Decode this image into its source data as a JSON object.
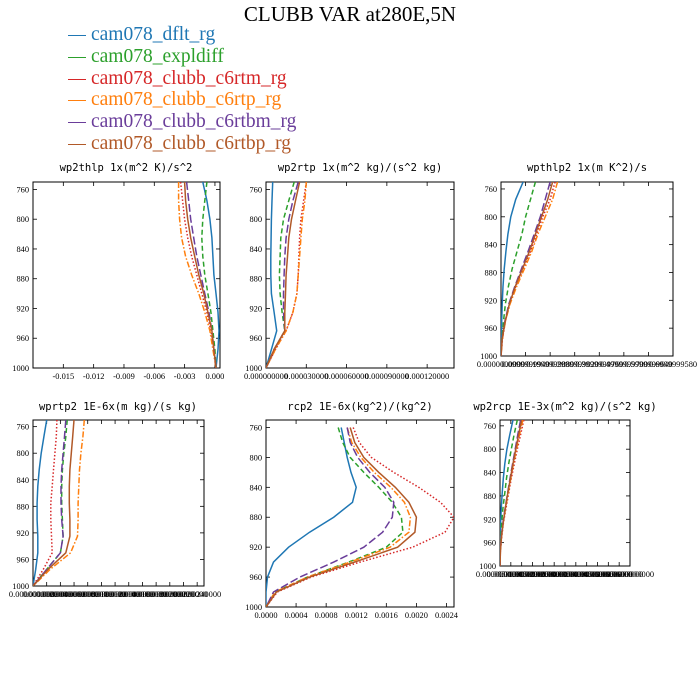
{
  "title": "CLUBB VAR at280E,5N",
  "legend": [
    {
      "label": "cam078_dflt_rg",
      "color": "#1f77b4",
      "dash": "solid"
    },
    {
      "label": "cam078_expldiff",
      "color": "#2ca02c",
      "dash": "dashed"
    },
    {
      "label": "cam078_clubb_c6rtm_rg",
      "color": "#d62728",
      "dash": "dotted"
    },
    {
      "label": "cam078_clubb_c6rtp_rg",
      "color": "#ff7f0e",
      "dash": "dashdot"
    },
    {
      "label": "cam078_clubb_c6rtbm_rg",
      "color": "#6a3d9a",
      "dash": "longdash"
    },
    {
      "label": "cam078_clubb_c6rtbp_rg",
      "color": "#b15928",
      "dash": "solid"
    }
  ],
  "chart_data": [
    {
      "type": "line",
      "title": "wp2thlp  1x(m^2 K)/s^2",
      "xlim": [
        -0.018,
        0.0005
      ],
      "ylim": [
        1000,
        750
      ],
      "xticks": [
        "-0.015",
        "-0.012",
        "-0.009",
        "-0.006",
        "-0.003",
        "0.000"
      ],
      "xtick_values": [
        -0.015,
        -0.012,
        -0.009,
        -0.006,
        -0.003,
        0.0
      ],
      "yticks": [
        760,
        800,
        840,
        880,
        920,
        960,
        1000
      ],
      "levels": [
        750,
        775,
        800,
        825,
        850,
        875,
        900,
        925,
        950,
        975,
        1000
      ],
      "series": [
        {
          "name": "cam078_dflt_rg",
          "values": [
            -0.0012,
            -0.0008,
            -0.0005,
            -0.0003,
            -0.0002,
            -0.0001,
            0.0001,
            0.0003,
            0.0004,
            0.0003,
            0.0001
          ]
        },
        {
          "name": "cam078_expldiff",
          "values": [
            -0.0008,
            -0.001,
            -0.0012,
            -0.0013,
            -0.0012,
            -0.001,
            -0.0007,
            -0.0004,
            -0.0002,
            0.0,
            0.0001
          ]
        },
        {
          "name": "cam078_clubb_c6rtm_rg",
          "values": [
            -0.0034,
            -0.0032,
            -0.003,
            -0.0027,
            -0.0023,
            -0.0018,
            -0.0013,
            -0.0008,
            -0.0004,
            -0.0001,
            0.0001
          ]
        },
        {
          "name": "cam078_clubb_c6rtp_rg",
          "values": [
            -0.0036,
            -0.0036,
            -0.0035,
            -0.0033,
            -0.0029,
            -0.0023,
            -0.0016,
            -0.001,
            -0.0005,
            -0.0002,
            0.0001
          ]
        },
        {
          "name": "cam078_clubb_c6rtbm_rg",
          "values": [
            -0.0028,
            -0.0026,
            -0.0024,
            -0.0021,
            -0.0018,
            -0.0014,
            -0.001,
            -0.0006,
            -0.0003,
            -0.0001,
            0.0001
          ]
        },
        {
          "name": "cam078_clubb_c6rtbp_rg",
          "values": [
            -0.003,
            -0.0029,
            -0.0027,
            -0.0024,
            -0.002,
            -0.0016,
            -0.0011,
            -0.0007,
            -0.0003,
            -0.0001,
            0.0001
          ]
        }
      ]
    },
    {
      "type": "line",
      "title": "wp2rtp  1x(m^2 kg)/(s^2 kg)",
      "xlim": [
        0,
        0.00014
      ],
      "ylim": [
        1000,
        750
      ],
      "xticks": [
        "0.000000000",
        "0.000030000",
        "0.000060000",
        "0.000090000",
        "0.000120000"
      ],
      "xtick_values": [
        0,
        3e-05,
        6e-05,
        9e-05,
        0.00012
      ],
      "yticks": [
        760,
        800,
        840,
        880,
        920,
        960,
        1000
      ],
      "levels": [
        750,
        775,
        800,
        825,
        850,
        875,
        900,
        925,
        950,
        975,
        1000
      ],
      "series": [
        {
          "name": "cam078_dflt_rg",
          "values": [
            5e-06,
            4.5e-06,
            4e-06,
            3.8e-06,
            3.6e-06,
            3.6e-06,
            4e-06,
            6e-06,
            8e-06,
            4e-06,
            0.0
          ]
        },
        {
          "name": "cam078_expldiff",
          "values": [
            2.1e-05,
            1.7e-05,
            1.3e-05,
            1.1e-05,
            1.05e-05,
            1e-05,
            1.05e-05,
            1.2e-05,
            1.4e-05,
            6e-06,
            0.0
          ]
        },
        {
          "name": "cam078_clubb_c6rtm_rg",
          "values": [
            3e-05,
            2.8e-05,
            2.6e-05,
            2.5e-05,
            2.45e-05,
            2.4e-05,
            2.3e-05,
            2e-05,
            1.5e-05,
            7e-06,
            0.0
          ]
        },
        {
          "name": "cam078_clubb_c6rtp_rg",
          "values": [
            3e-05,
            2.9e-05,
            2.7e-05,
            2.6e-05,
            2.5e-05,
            2.4e-05,
            2.3e-05,
            2e-05,
            1.5e-05,
            7e-06,
            0.0
          ]
        },
        {
          "name": "cam078_clubb_c6rtbm_rg",
          "values": [
            2.4e-05,
            2e-05,
            1.7e-05,
            1.5e-05,
            1.4e-05,
            1.35e-05,
            1.3e-05,
            1.3e-05,
            1.4e-05,
            6e-06,
            0.0
          ]
        },
        {
          "name": "cam078_clubb_c6rtbp_rg",
          "values": [
            2.5e-05,
            2.2e-05,
            1.9e-05,
            1.7e-05,
            1.6e-05,
            1.5e-05,
            1.45e-05,
            1.4e-05,
            1.4e-05,
            6e-06,
            0.0
          ]
        }
      ]
    },
    {
      "type": "line",
      "title": "wpthlp2  1x(m K^2)/s",
      "xlim": [
        0,
        0.7
      ],
      "ylim": [
        1000,
        750
      ],
      "xticks": [
        "0.0000000000",
        "0.0999999940",
        "0.1999999880",
        "0.2999999820",
        "0.3999999760",
        "0.4999999700",
        "0.5999999640",
        "0.6999999580"
      ],
      "xtick_values": [
        0,
        0.1,
        0.2,
        0.3,
        0.4,
        0.5,
        0.6,
        0.7
      ],
      "yticks": [
        760,
        800,
        840,
        880,
        920,
        960,
        1000
      ],
      "levels": [
        750,
        775,
        800,
        825,
        850,
        875,
        900,
        925,
        950,
        975,
        1000
      ],
      "series": [
        {
          "name": "cam078_dflt_rg",
          "values": [
            0.09,
            0.06,
            0.04,
            0.028,
            0.02,
            0.013,
            0.008,
            0.005,
            0.003,
            0.001,
            0.0
          ]
        },
        {
          "name": "cam078_expldiff",
          "values": [
            0.14,
            0.12,
            0.1,
            0.085,
            0.065,
            0.045,
            0.03,
            0.018,
            0.01,
            0.004,
            0.0
          ]
        },
        {
          "name": "cam078_clubb_c6rtm_rg",
          "values": [
            0.22,
            0.2,
            0.17,
            0.145,
            0.12,
            0.09,
            0.06,
            0.035,
            0.018,
            0.006,
            0.0
          ]
        },
        {
          "name": "cam078_clubb_c6rtp_rg",
          "values": [
            0.23,
            0.21,
            0.18,
            0.15,
            0.125,
            0.095,
            0.064,
            0.037,
            0.018,
            0.006,
            0.0
          ]
        },
        {
          "name": "cam078_clubb_c6rtbm_rg",
          "values": [
            0.2,
            0.18,
            0.16,
            0.135,
            0.11,
            0.083,
            0.056,
            0.032,
            0.016,
            0.005,
            0.0
          ]
        },
        {
          "name": "cam078_clubb_c6rtbp_rg",
          "values": [
            0.21,
            0.19,
            0.165,
            0.14,
            0.115,
            0.087,
            0.058,
            0.034,
            0.017,
            0.005,
            0.0
          ]
        }
      ]
    },
    {
      "type": "line",
      "title": "wprtp2  1E-6x(m kg)/(s kg)",
      "xlim": [
        0,
        2.5e-05
      ],
      "ylim": [
        1000,
        750
      ],
      "xticks": [
        "0.0000000000",
        "0.0000020000",
        "0.0000040000",
        "0.0000060000",
        "0.0000080000",
        "0.0000100000",
        "0.0000120000",
        "0.0000140000",
        "0.0000160000",
        "0.0000180000",
        "0.0000200000",
        "0.0000220000",
        "0.0000240000"
      ],
      "xtick_values": [
        0,
        2e-06,
        4e-06,
        6e-06,
        8e-06,
        1e-05,
        1.2e-05,
        1.4e-05,
        1.6e-05,
        1.8e-05,
        2e-05,
        2.2e-05,
        2.4e-05
      ],
      "yticks": [
        760,
        800,
        840,
        880,
        920,
        960,
        1000
      ],
      "levels": [
        750,
        775,
        800,
        825,
        850,
        875,
        900,
        925,
        950,
        975,
        1000
      ],
      "series": [
        {
          "name": "cam078_dflt_rg",
          "values": [
            2e-06,
            1.6e-06,
            1.2e-06,
            9e-07,
            7e-07,
            6e-07,
            6e-07,
            7e-07,
            7e-07,
            4e-07,
            0.0
          ]
        },
        {
          "name": "cam078_expldiff",
          "values": [
            5e-06,
            4.8e-06,
            4.5e-06,
            4.3e-06,
            4.2e-06,
            4.2e-06,
            4.3e-06,
            4.4e-06,
            4e-06,
            2e-06,
            0.0
          ]
        },
        {
          "name": "cam078_clubb_c6rtm_rg",
          "values": [
            3.5e-06,
            3.4e-06,
            3.2e-06,
            3e-06,
            2.8e-06,
            2.6e-06,
            2.6e-06,
            2.7e-06,
            2.8e-06,
            1.5e-06,
            0.0
          ]
        },
        {
          "name": "cam078_clubb_c6rtp_rg",
          "values": [
            7.5e-06,
            7.3e-06,
            7e-06,
            6.8e-06,
            6.7e-06,
            6.6e-06,
            6.6e-06,
            6.5e-06,
            5.5e-06,
            2.5e-06,
            0.0
          ]
        },
        {
          "name": "cam078_clubb_c6rtbm_rg",
          "values": [
            4.8e-06,
            4.6e-06,
            4.4e-06,
            4.2e-06,
            4.1e-06,
            4.1e-06,
            4.2e-06,
            4.4e-06,
            4e-06,
            2e-06,
            0.0
          ]
        },
        {
          "name": "cam078_clubb_c6rtbp_rg",
          "values": [
            6e-06,
            5.8e-06,
            5.6e-06,
            5.4e-06,
            5.3e-06,
            5.3e-06,
            5.4e-06,
            5.4e-06,
            4.8e-06,
            2.2e-06,
            0.0
          ]
        }
      ]
    },
    {
      "type": "line",
      "title": "rcp2  1E-6x(kg^2)/(kg^2)",
      "xlim": [
        0,
        0.0025
      ],
      "ylim": [
        1000,
        750
      ],
      "xticks": [
        "0.0000",
        "0.0004",
        "0.0008",
        "0.0012",
        "0.0016",
        "0.0020",
        "0.0024"
      ],
      "xtick_values": [
        0,
        0.0004,
        0.0008,
        0.0012,
        0.0016,
        0.002,
        0.0024
      ],
      "yticks": [
        760,
        800,
        840,
        880,
        920,
        960,
        1000
      ],
      "levels": [
        760,
        780,
        800,
        820,
        840,
        860,
        880,
        900,
        920,
        940,
        960,
        980,
        1000
      ],
      "series": [
        {
          "name": "cam078_dflt_rg",
          "values": [
            0.001,
            0.00104,
            0.00108,
            0.00113,
            0.0012,
            0.00115,
            0.0009,
            0.00058,
            0.0003,
            0.0001,
            2e-05,
            0.0,
            0.0
          ]
        },
        {
          "name": "cam078_expldiff",
          "values": [
            0.00096,
            0.00102,
            0.00112,
            0.0013,
            0.0015,
            0.00168,
            0.0018,
            0.00182,
            0.0016,
            0.0011,
            0.00055,
            0.00012,
            0.0
          ]
        },
        {
          "name": "cam078_clubb_c6rtm_rg",
          "values": [
            0.00116,
            0.00124,
            0.0014,
            0.0017,
            0.00203,
            0.00232,
            0.0025,
            0.00238,
            0.00195,
            0.00125,
            0.0006,
            0.00015,
            0.0
          ]
        },
        {
          "name": "cam078_clubb_c6rtp_rg",
          "values": [
            0.00108,
            0.00114,
            0.00126,
            0.00144,
            0.00166,
            0.00184,
            0.00192,
            0.0019,
            0.00165,
            0.00112,
            0.00055,
            0.00012,
            0.0
          ]
        },
        {
          "name": "cam078_clubb_c6rtbm_rg",
          "values": [
            0.00108,
            0.00112,
            0.00122,
            0.00138,
            0.00158,
            0.0017,
            0.00168,
            0.00155,
            0.0013,
            0.0009,
            0.00045,
            0.0001,
            0.0
          ]
        },
        {
          "name": "cam078_clubb_c6rtbp_rg",
          "values": [
            0.00112,
            0.00118,
            0.0013,
            0.0015,
            0.00172,
            0.0019,
            0.002,
            0.00198,
            0.00175,
            0.00118,
            0.00058,
            0.00014,
            0.0
          ]
        }
      ]
    },
    {
      "type": "line",
      "title": "wp2rcp  1E-3x(m^2 kg)/(s^2 kg)",
      "xlim": [
        0,
        0.06
      ],
      "ylim": [
        1000,
        750
      ],
      "xticks": [
        "0.0000000000",
        "0.0050000000",
        "0.0100000000",
        "0.0150000000",
        "0.0200000000",
        "0.0250000000",
        "0.0300000000",
        "0.0350000000",
        "0.0400000000",
        "0.0450000000",
        "0.0500000000",
        "0.0550000000",
        "0.0600000000"
      ],
      "xtick_values": [
        0,
        0.005,
        0.01,
        0.015,
        0.02,
        0.025,
        0.03,
        0.035,
        0.04,
        0.045,
        0.05,
        0.055,
        0.06
      ],
      "yticks": [
        760,
        800,
        840,
        880,
        920,
        960,
        1000
      ],
      "levels": [
        750,
        775,
        800,
        825,
        850,
        875,
        900,
        925,
        950,
        975,
        1000
      ],
      "series": [
        {
          "name": "cam078_dflt_rg",
          "values": [
            0.006,
            0.0045,
            0.0032,
            0.0022,
            0.0015,
            0.001,
            0.0006,
            0.0003,
            0.0001,
            0.0,
            0.0
          ]
        },
        {
          "name": "cam078_expldiff",
          "values": [
            0.008,
            0.0065,
            0.0052,
            0.004,
            0.003,
            0.0022,
            0.0014,
            0.0008,
            0.0004,
            0.0001,
            0.0
          ]
        },
        {
          "name": "cam078_clubb_c6rtm_rg",
          "values": [
            0.011,
            0.0095,
            0.008,
            0.0066,
            0.0052,
            0.004,
            0.0028,
            0.0016,
            0.0008,
            0.0002,
            0.0
          ]
        },
        {
          "name": "cam078_clubb_c6rtp_rg",
          "values": [
            0.0105,
            0.009,
            0.0076,
            0.0062,
            0.005,
            0.0038,
            0.0026,
            0.0015,
            0.0007,
            0.0002,
            0.0
          ]
        },
        {
          "name": "cam078_clubb_c6rtbm_rg",
          "values": [
            0.0095,
            0.0082,
            0.007,
            0.0058,
            0.0046,
            0.0035,
            0.0024,
            0.0014,
            0.0006,
            0.0001,
            0.0
          ]
        },
        {
          "name": "cam078_clubb_c6rtbp_rg",
          "values": [
            0.01,
            0.0086,
            0.0073,
            0.006,
            0.0048,
            0.0036,
            0.0025,
            0.0015,
            0.0007,
            0.0002,
            0.0
          ]
        }
      ]
    }
  ]
}
